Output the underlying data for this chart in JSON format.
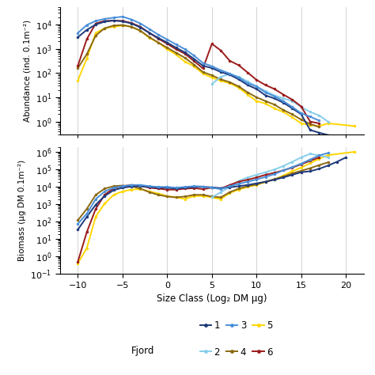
{
  "colors": {
    "1": "#1f3a7a",
    "2": "#87ceeb",
    "3": "#4a90d9",
    "4": "#8B6914",
    "5": "#FFD600",
    "6": "#9b1c1c"
  },
  "abundance": {
    "1": {
      "x": [
        -10,
        -9,
        -8,
        -7,
        -6,
        -5,
        -4,
        -3,
        -2,
        -1,
        0,
        1,
        2,
        3,
        4,
        5,
        6,
        7,
        8,
        9,
        10,
        11,
        12,
        13,
        14,
        15,
        16,
        17,
        18,
        19,
        20,
        21
      ],
      "y": [
        3000,
        6000,
        10000,
        13000,
        14500,
        13500,
        11000,
        7500,
        4500,
        2800,
        1800,
        1100,
        700,
        380,
        200,
        160,
        110,
        85,
        55,
        32,
        22,
        12,
        9,
        6,
        3.5,
        2.0,
        0.45,
        0.35,
        0.28,
        null,
        0.28,
        null
      ]
    },
    "2": {
      "x": [
        5,
        6,
        7,
        8,
        9,
        10,
        11,
        12,
        13,
        14,
        15,
        16,
        17,
        18
      ],
      "y": [
        35,
        70,
        90,
        70,
        45,
        28,
        18,
        12,
        9,
        7,
        4,
        2.5,
        1.8,
        1.0
      ]
    },
    "3": {
      "x": [
        -10,
        -9,
        -8,
        -7,
        -6,
        -5,
        -4,
        -3,
        -2,
        -1,
        0,
        1,
        2,
        3,
        4,
        5,
        6,
        7,
        8,
        9,
        10,
        11,
        12,
        13,
        14,
        15,
        16,
        17
      ],
      "y": [
        4500,
        9500,
        14000,
        17000,
        19000,
        21000,
        16000,
        11000,
        6500,
        3800,
        2400,
        1500,
        950,
        520,
        260,
        190,
        130,
        95,
        65,
        38,
        28,
        16,
        11,
        7,
        4,
        2.2,
        1.6,
        1.1
      ]
    },
    "4": {
      "x": [
        -10,
        -9,
        -8,
        -7,
        -6,
        -5,
        -4,
        -3,
        -2,
        -1,
        0,
        1,
        2,
        3,
        4,
        5,
        6,
        7,
        8,
        9,
        10,
        11,
        12,
        13,
        14,
        15,
        16,
        17
      ],
      "y": [
        160,
        600,
        3500,
        7000,
        9000,
        9500,
        8000,
        5500,
        3000,
        1800,
        1100,
        680,
        420,
        220,
        110,
        80,
        55,
        42,
        28,
        16,
        10,
        7,
        5,
        3,
        2,
        1.2,
        0.8,
        0.6
      ]
    },
    "5": {
      "x": [
        -10,
        -9,
        -8,
        -7,
        -6,
        -5,
        -4,
        -3,
        -2,
        -1,
        0,
        1,
        2,
        3,
        4,
        5,
        6,
        7,
        8,
        9,
        10,
        11,
        12,
        13,
        14,
        15,
        16,
        17,
        18,
        21
      ],
      "y": [
        50,
        400,
        4500,
        7000,
        8000,
        9000,
        8000,
        5500,
        2800,
        1800,
        950,
        580,
        290,
        190,
        95,
        65,
        48,
        38,
        25,
        13,
        7,
        5.5,
        3.5,
        2.5,
        1.5,
        0.85,
        0.72,
        0.65,
        0.85,
        0.65
      ]
    },
    "6": {
      "x": [
        -10,
        -9,
        -8,
        -7,
        -6,
        -5,
        -4,
        -3,
        -2,
        -1,
        0,
        1,
        2,
        3,
        4,
        5,
        6,
        7,
        8,
        9,
        10,
        11,
        12,
        13,
        14,
        15,
        16,
        17
      ],
      "y": [
        200,
        2500,
        11000,
        14000,
        14500,
        14000,
        11500,
        8000,
        4500,
        2600,
        1600,
        950,
        620,
        310,
        155,
        1600,
        850,
        320,
        210,
        105,
        52,
        32,
        22,
        13,
        8,
        4.2,
        1.0,
        0.85
      ]
    }
  },
  "biomass": {
    "1": {
      "x": [
        -10,
        -9,
        -8,
        -7,
        -6,
        -5,
        -4,
        -3,
        -2,
        -1,
        0,
        1,
        2,
        3,
        4,
        5,
        6,
        7,
        8,
        9,
        10,
        11,
        12,
        13,
        14,
        15,
        16,
        17,
        18,
        19,
        20
      ],
      "y": [
        35,
        190,
        950,
        3000,
        6500,
        9000,
        10500,
        11000,
        10000,
        9000,
        9000,
        8000,
        9000,
        10000,
        10000,
        9500,
        8500,
        9500,
        11000,
        13000,
        16000,
        20000,
        26000,
        35000,
        50000,
        70000,
        80000,
        110000,
        170000,
        280000,
        500000
      ]
    },
    "2": {
      "x": [
        5,
        6,
        7,
        8,
        9,
        10,
        11,
        12,
        13,
        14,
        15,
        16,
        17,
        18
      ],
      "y": [
        2500,
        5000,
        10000,
        22000,
        35000,
        50000,
        70000,
        100000,
        160000,
        280000,
        500000,
        800000,
        650000,
        500000
      ]
    },
    "3": {
      "x": [
        -10,
        -9,
        -8,
        -7,
        -6,
        -5,
        -4,
        -3,
        -2,
        -1,
        0,
        1,
        2,
        3,
        4,
        5,
        6,
        7,
        8,
        9,
        10,
        11,
        12,
        13,
        14,
        15,
        16,
        17,
        18
      ],
      "y": [
        75,
        290,
        2000,
        5500,
        9000,
        11000,
        13000,
        13000,
        11000,
        10000,
        10000,
        9000,
        10000,
        11000,
        10500,
        9000,
        7500,
        11000,
        15000,
        20000,
        27000,
        38000,
        55000,
        90000,
        140000,
        220000,
        380000,
        650000,
        900000
      ]
    },
    "4": {
      "x": [
        -10,
        -9,
        -8,
        -7,
        -6,
        -5,
        -4,
        -3,
        -2,
        -1,
        0,
        1,
        2,
        3,
        4,
        5,
        6,
        7,
        8,
        9,
        10,
        11,
        12,
        13,
        14,
        15,
        16,
        17,
        18
      ],
      "y": [
        120,
        550,
        3500,
        8000,
        11000,
        12000,
        11000,
        8000,
        5000,
        3500,
        2800,
        2500,
        2800,
        3500,
        3500,
        2800,
        2500,
        5000,
        8000,
        11000,
        14000,
        20000,
        28000,
        40000,
        60000,
        85000,
        120000,
        180000,
        260000
      ]
    },
    "5": {
      "x": [
        -10,
        -9,
        -8,
        -7,
        -6,
        -5,
        -4,
        -3,
        -2,
        -1,
        0,
        1,
        2,
        3,
        4,
        5,
        6,
        7,
        8,
        9,
        10,
        11,
        12,
        13,
        14,
        15,
        16,
        17,
        18,
        21
      ],
      "y": [
        0.4,
        3,
        200,
        1100,
        3500,
        5500,
        7000,
        7500,
        5500,
        4200,
        3000,
        2500,
        2000,
        3000,
        3000,
        2500,
        2000,
        4500,
        7000,
        10000,
        13000,
        19000,
        27000,
        45000,
        80000,
        130000,
        230000,
        420000,
        680000,
        1050000
      ]
    },
    "6": {
      "x": [
        -10,
        -9,
        -8,
        -7,
        -6,
        -5,
        -4,
        -3,
        -2,
        -1,
        0,
        1,
        2,
        3,
        4,
        5,
        6,
        7,
        8,
        9,
        10,
        11,
        12,
        13,
        14,
        15,
        16,
        17
      ],
      "y": [
        0.5,
        25,
        550,
        3500,
        8500,
        11000,
        13000,
        11500,
        9000,
        8000,
        7000,
        7000,
        8000,
        8500,
        7500,
        9000,
        8000,
        13000,
        20000,
        26000,
        35000,
        50000,
        65000,
        90000,
        130000,
        200000,
        320000,
        500000
      ]
    }
  },
  "xlim": [
    -12,
    22
  ],
  "ylim_abundance": [
    0.3,
    50000
  ],
  "ylim_biomass": [
    0.1,
    2000000
  ],
  "xticks": [
    -10,
    -5,
    0,
    5,
    10,
    15,
    20
  ],
  "xlabel": "Size Class (Log₂ DM μg)",
  "ylabel_abundance": "Abundance (ind. 0.1m⁻²)",
  "ylabel_biomass": "Biomass (μg DM 0.1m⁻²)",
  "fjord_labels": [
    "1",
    "2",
    "3",
    "4",
    "5",
    "6"
  ],
  "marker": "o",
  "markersize": 2.5,
  "linewidth": 1.4
}
